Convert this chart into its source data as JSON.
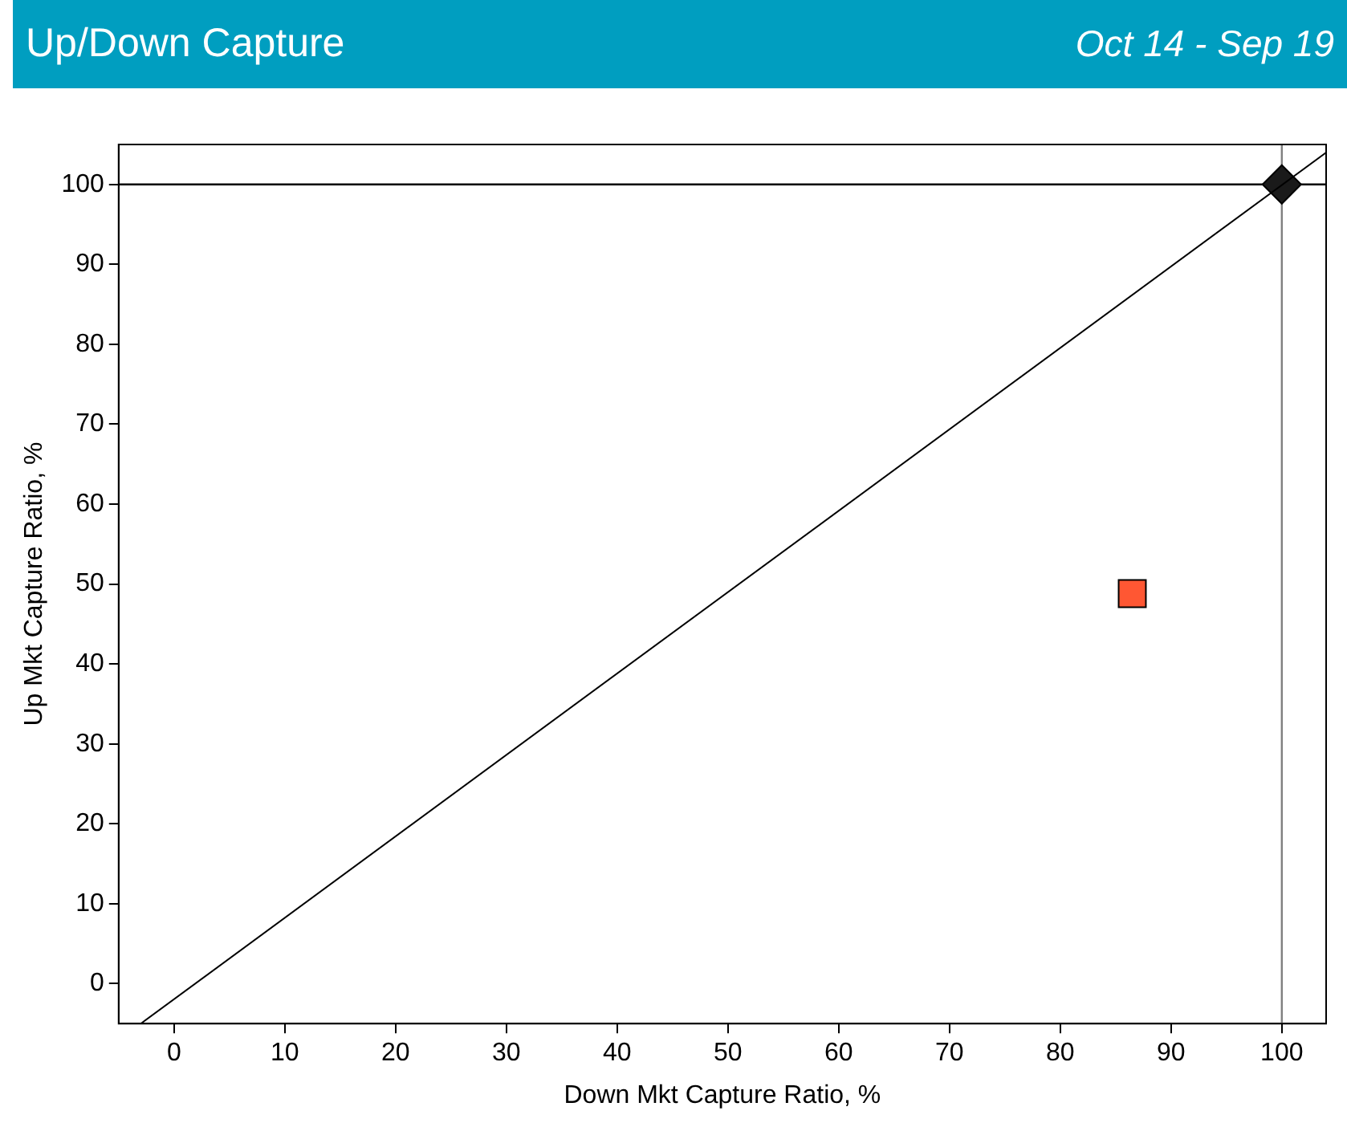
{
  "chart_data": {
    "type": "scatter",
    "title": "Up/Down Capture",
    "subtitle": "Oct 14 - Sep 19",
    "xlabel": "Down Mkt Capture Ratio, %",
    "ylabel": "Up Mkt Capture Ratio, %",
    "xlim": [
      -5,
      104
    ],
    "ylim": [
      -5,
      105
    ],
    "xticks": [
      0,
      10,
      20,
      30,
      40,
      50,
      60,
      70,
      80,
      90,
      100
    ],
    "yticks": [
      0,
      10,
      20,
      30,
      40,
      50,
      60,
      70,
      80,
      90,
      100
    ],
    "grid": false,
    "legend": false,
    "series": [
      {
        "type": "line",
        "color": "#000000",
        "x": [
          -3,
          104
        ],
        "values": [
          -5,
          104
        ],
        "marker": "none"
      },
      {
        "type": "scatter",
        "color": "#ff5733",
        "x": [
          86.5
        ],
        "values": [
          48.8
        ],
        "marker": "square"
      },
      {
        "type": "scatter",
        "color": "#1a1a1a",
        "x": [
          100
        ],
        "values": [
          100
        ],
        "marker": "diamond"
      }
    ],
    "ref_lines": [
      {
        "axis": "y",
        "value": 100,
        "color": "#000000"
      },
      {
        "axis": "x",
        "value": 100,
        "color": "#808080"
      }
    ]
  }
}
